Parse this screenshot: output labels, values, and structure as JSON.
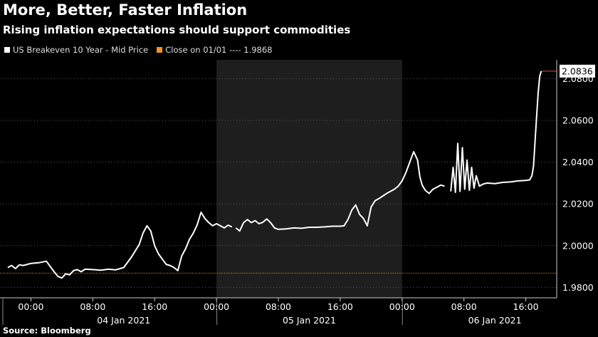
{
  "header": {
    "title": "More, Better, Faster Inflation",
    "subtitle": "Rising inflation expectations should support commodities"
  },
  "legend": {
    "series_label": "US Breakeven 10 Year - Mid Price",
    "close_label": "Close on 01/01 ---- 1.9868",
    "series_color": "#ffffff",
    "close_color": "#f7931e"
  },
  "source": "Source: Bloomberg",
  "chart_data": {
    "type": "line",
    "title": "More, Better, Faster Inflation",
    "subtitle": "Rising inflation expectations should support commodities",
    "xlabel": "",
    "ylabel": "",
    "y_ticks": [
      "1.9800",
      "2.0000",
      "2.0200",
      "2.0400",
      "2.0600",
      "2.0800"
    ],
    "ylim": [
      1.975,
      2.089
    ],
    "x_ticks": [
      "00:00",
      "08:00",
      "16:00",
      "00:00",
      "08:00",
      "16:00",
      "00:00",
      "08:00",
      "16:00"
    ],
    "x_day_labels": [
      "04 Jan 2021",
      "05 Jan 2021",
      "06 Jan 2021"
    ],
    "x_unit": "hours since 04 Jan 2021 00:00",
    "xlim": [
      -4,
      68
    ],
    "reference_line": {
      "label": "Close on 01/01",
      "value": 1.9868,
      "color": "#f7931e"
    },
    "last_value_label": "2.0836",
    "last_value": 2.0836,
    "shaded_day": "05 Jan 2021",
    "grid": "horizontal-dashed",
    "series": [
      {
        "name": "US Breakeven 10 Year - Mid Price",
        "color": "#ffffff",
        "segments": [
          [
            [
              -3,
              1.9895
            ],
            [
              -2.5,
              1.9905
            ],
            [
              -2,
              1.989
            ],
            [
              -1.5,
              1.9908
            ],
            [
              -1,
              1.9905
            ],
            [
              0,
              1.9915
            ],
            [
              1,
              1.9918
            ],
            [
              2,
              1.9925
            ],
            [
              2.5,
              1.99
            ],
            [
              3,
              1.9875
            ],
            [
              3.5,
              1.9852
            ],
            [
              4,
              1.9845
            ],
            [
              4.5,
              1.9865
            ],
            [
              5,
              1.986
            ],
            [
              5.5,
              1.988
            ],
            [
              6,
              1.9885
            ],
            [
              6.5,
              1.9875
            ],
            [
              7,
              1.9887
            ],
            [
              8,
              1.9885
            ],
            [
              9,
              1.9882
            ],
            [
              10,
              1.9887
            ],
            [
              11,
              1.9884
            ],
            [
              12,
              1.9895
            ],
            [
              13,
              1.9945
            ],
            [
              14,
              2.0005
            ],
            [
              14.5,
              2.006
            ],
            [
              15,
              2.0095
            ],
            [
              15.5,
              2.007
            ],
            [
              16,
              2.0
            ],
            [
              16.5,
              1.996
            ],
            [
              17,
              1.9935
            ],
            [
              17.5,
              1.991
            ],
            [
              18,
              1.9905
            ],
            [
              18.5,
              1.9895
            ],
            [
              19,
              1.988
            ],
            [
              19.5,
              1.995
            ],
            [
              20,
              1.9985
            ],
            [
              20.5,
              2.003
            ],
            [
              21,
              2.006
            ],
            [
              21.5,
              2.01
            ],
            [
              22,
              2.016
            ],
            [
              22.5,
              2.013
            ],
            [
              23,
              2.011
            ],
            [
              23.5,
              2.0095
            ],
            [
              24,
              2.0105
            ],
            [
              24.5,
              2.0095
            ],
            [
              25,
              2.0085
            ],
            [
              25.5,
              2.0098
            ],
            [
              26,
              2.009
            ]
          ],
          [
            [
              26.5,
              2.0085
            ],
            [
              27,
              2.007
            ],
            [
              27.5,
              2.011
            ],
            [
              28,
              2.0125
            ],
            [
              28.5,
              2.011
            ],
            [
              29,
              2.012
            ],
            [
              29.5,
              2.0105
            ],
            [
              30,
              2.0112
            ],
            [
              30.5,
              2.0128
            ],
            [
              31,
              2.011
            ],
            [
              31.5,
              2.0085
            ],
            [
              32,
              2.0078
            ],
            [
              33,
              2.008
            ],
            [
              34,
              2.0085
            ],
            [
              35,
              2.0083
            ],
            [
              36,
              2.0088
            ],
            [
              37,
              2.0088
            ],
            [
              38,
              2.009
            ],
            [
              39,
              2.0093
            ],
            [
              40,
              2.0093
            ],
            [
              40.5,
              2.0095
            ],
            [
              41,
              2.0125
            ],
            [
              41.5,
              2.017
            ],
            [
              42,
              2.0195
            ],
            [
              42.5,
              2.015
            ],
            [
              43,
              2.013
            ],
            [
              43.5,
              2.0095
            ],
            [
              44,
              2.0185
            ],
            [
              44.5,
              2.0215
            ],
            [
              45,
              2.0225
            ],
            [
              46,
              2.025
            ],
            [
              47,
              2.027
            ],
            [
              47.5,
              2.0285
            ],
            [
              48,
              2.031
            ],
            [
              48.5,
              2.035
            ],
            [
              49,
              2.04
            ],
            [
              49.5,
              2.045
            ],
            [
              50,
              2.041
            ],
            [
              50.3,
              2.033
            ],
            [
              50.6,
              2.029
            ],
            [
              51,
              2.0265
            ],
            [
              51.5,
              2.025
            ],
            [
              52,
              2.027
            ],
            [
              52.5,
              2.028
            ],
            [
              53,
              2.029
            ],
            [
              53.5,
              2.0285
            ]
          ],
          [
            [
              54.3,
              2.026
            ],
            [
              54.6,
              2.0375
            ],
            [
              54.9,
              2.0255
            ],
            [
              55.2,
              2.049
            ],
            [
              55.5,
              2.026
            ],
            [
              55.8,
              2.047
            ],
            [
              56.1,
              2.027
            ],
            [
              56.4,
              2.041
            ],
            [
              56.7,
              2.0265
            ],
            [
              57,
              2.0375
            ],
            [
              57.3,
              2.0275
            ],
            [
              57.6,
              2.0335
            ],
            [
              58,
              2.0285
            ],
            [
              58.5,
              2.0295
            ],
            [
              59,
              2.03
            ],
            [
              60,
              2.0297
            ],
            [
              61,
              2.0303
            ],
            [
              62,
              2.0305
            ],
            [
              63,
              2.031
            ],
            [
              64,
              2.0312
            ],
            [
              64.5,
              2.0315
            ],
            [
              64.8,
              2.0335
            ],
            [
              65,
              2.038
            ],
            [
              65.2,
              2.05
            ],
            [
              65.4,
              2.062
            ],
            [
              65.6,
              2.073
            ],
            [
              65.8,
              2.081
            ],
            [
              66,
              2.0836
            ]
          ]
        ]
      }
    ]
  }
}
